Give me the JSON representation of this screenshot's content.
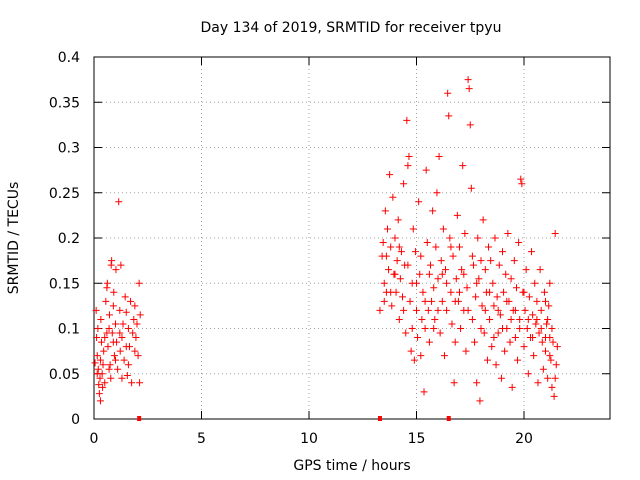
{
  "chart_data": {
    "type": "scatter",
    "title": "Day 134 of 2019, SRMTID for receiver tpyu",
    "xlabel": "GPS time / hours",
    "ylabel": "SRMTID / TECUs",
    "xlim": [
      0,
      24
    ],
    "ylim": [
      0,
      0.4
    ],
    "xticks": [
      0,
      5,
      10,
      15,
      20
    ],
    "yticks": [
      0,
      0.05,
      0.1,
      0.15,
      0.2,
      0.25,
      0.3,
      0.35,
      0.4
    ],
    "ytick_labels": [
      "0",
      "0.05",
      "0.1",
      "0.15",
      "0.2",
      "0.25",
      "0.3",
      "0.35",
      "0.4"
    ],
    "grid": true,
    "marker": "plus",
    "series": [
      {
        "color": "#ff0000",
        "points": [
          [
            0.05,
            0.062
          ],
          [
            0.1,
            0.12
          ],
          [
            0.12,
            0.09
          ],
          [
            0.15,
            0.07
          ],
          [
            0.18,
            0.1
          ],
          [
            0.2,
            0.055
          ],
          [
            0.22,
            0.038
          ],
          [
            0.25,
            0.028
          ],
          [
            0.28,
            0.045
          ],
          [
            0.3,
            0.065
          ],
          [
            0.32,
            0.11
          ],
          [
            0.35,
            0.085
          ],
          [
            0.38,
            0.05
          ],
          [
            0.4,
            0.035
          ],
          [
            0.42,
            0.06
          ],
          [
            0.45,
            0.075
          ],
          [
            0.5,
            0.09
          ],
          [
            0.55,
            0.13
          ],
          [
            0.6,
            0.145
          ],
          [
            0.62,
            0.15
          ],
          [
            0.65,
            0.08
          ],
          [
            0.7,
            0.1
          ],
          [
            0.72,
            0.115
          ],
          [
            0.75,
            0.06
          ],
          [
            0.78,
            0.045
          ],
          [
            0.8,
            0.17
          ],
          [
            0.82,
            0.175
          ],
          [
            0.85,
            0.095
          ],
          [
            0.9,
            0.125
          ],
          [
            0.92,
            0.14
          ],
          [
            0.95,
            0.07
          ],
          [
            1.0,
            0.105
          ],
          [
            1.02,
            0.165
          ],
          [
            1.05,
            0.085
          ],
          [
            1.1,
            0.055
          ],
          [
            1.15,
            0.24
          ],
          [
            1.2,
            0.12
          ],
          [
            1.22,
            0.075
          ],
          [
            1.25,
            0.17
          ],
          [
            1.3,
            0.09
          ],
          [
            1.35,
            0.105
          ],
          [
            1.4,
            0.065
          ],
          [
            1.45,
            0.135
          ],
          [
            1.5,
            0.118
          ],
          [
            1.55,
            0.048
          ],
          [
            1.6,
            0.1
          ],
          [
            1.65,
            0.08
          ],
          [
            1.7,
            0.13
          ],
          [
            1.75,
            0.04
          ],
          [
            1.8,
            0.095
          ],
          [
            1.85,
            0.11
          ],
          [
            1.9,
            0.125
          ],
          [
            1.95,
            0.09
          ],
          [
            2.0,
            0.105
          ],
          [
            2.05,
            0.07
          ],
          [
            2.1,
            0.15
          ],
          [
            2.12,
            0.04
          ],
          [
            2.15,
            0.115
          ],
          [
            0.5,
            0.04
          ],
          [
            0.3,
            0.02
          ],
          [
            0.15,
            0.05
          ],
          [
            0.7,
            0.055
          ],
          [
            1.0,
            0.065
          ],
          [
            1.3,
            0.045
          ],
          [
            1.6,
            0.06
          ],
          [
            1.9,
            0.075
          ],
          [
            0.6,
            0.095
          ],
          [
            0.9,
            0.085
          ],
          [
            1.2,
            0.095
          ],
          [
            1.5,
            0.08
          ],
          [
            13.3,
            0.12
          ],
          [
            13.4,
            0.18
          ],
          [
            13.45,
            0.195
          ],
          [
            13.5,
            0.15
          ],
          [
            13.55,
            0.23
          ],
          [
            13.6,
            0.14
          ],
          [
            13.65,
            0.21
          ],
          [
            13.7,
            0.165
          ],
          [
            13.75,
            0.27
          ],
          [
            13.8,
            0.19
          ],
          [
            13.85,
            0.125
          ],
          [
            13.9,
            0.245
          ],
          [
            13.95,
            0.16
          ],
          [
            14.0,
            0.2
          ],
          [
            14.05,
            0.14
          ],
          [
            14.1,
            0.175
          ],
          [
            14.15,
            0.22
          ],
          [
            14.2,
            0.11
          ],
          [
            14.25,
            0.155
          ],
          [
            14.3,
            0.185
          ],
          [
            14.35,
            0.135
          ],
          [
            14.4,
            0.26
          ],
          [
            14.45,
            0.17
          ],
          [
            14.5,
            0.095
          ],
          [
            14.55,
            0.33
          ],
          [
            14.6,
            0.28
          ],
          [
            14.65,
            0.29
          ],
          [
            14.7,
            0.13
          ],
          [
            14.75,
            0.075
          ],
          [
            14.8,
            0.15
          ],
          [
            14.85,
            0.21
          ],
          [
            14.9,
            0.065
          ],
          [
            14.95,
            0.185
          ],
          [
            15.0,
            0.12
          ],
          [
            15.05,
            0.09
          ],
          [
            15.1,
            0.24
          ],
          [
            15.15,
            0.16
          ],
          [
            15.2,
            0.07
          ],
          [
            15.25,
            0.11
          ],
          [
            15.3,
            0.14
          ],
          [
            15.35,
            0.03
          ],
          [
            15.4,
            0.1
          ],
          [
            15.45,
            0.275
          ],
          [
            15.5,
            0.195
          ],
          [
            15.55,
            0.12
          ],
          [
            15.6,
            0.085
          ],
          [
            15.65,
            0.17
          ],
          [
            15.7,
            0.13
          ],
          [
            15.75,
            0.23
          ],
          [
            15.8,
            0.145
          ],
          [
            15.85,
            0.11
          ],
          [
            15.9,
            0.19
          ],
          [
            15.95,
            0.25
          ],
          [
            16.0,
            0.155
          ],
          [
            16.05,
            0.29
          ],
          [
            16.1,
            0.095
          ],
          [
            16.15,
            0.175
          ],
          [
            16.2,
            0.13
          ],
          [
            16.25,
            0.21
          ],
          [
            16.3,
            0.07
          ],
          [
            16.35,
            0.165
          ],
          [
            16.4,
            0.12
          ],
          [
            16.45,
            0.36
          ],
          [
            16.5,
            0.335
          ],
          [
            16.55,
            0.2
          ],
          [
            16.6,
            0.14
          ],
          [
            16.65,
            0.105
          ],
          [
            16.7,
            0.18
          ],
          [
            16.75,
            0.04
          ],
          [
            16.8,
            0.085
          ],
          [
            16.85,
            0.155
          ],
          [
            16.9,
            0.225
          ],
          [
            16.95,
            0.13
          ],
          [
            17.0,
            0.19
          ],
          [
            17.05,
            0.1
          ],
          [
            17.1,
            0.165
          ],
          [
            17.15,
            0.28
          ],
          [
            17.2,
            0.12
          ],
          [
            17.25,
            0.205
          ],
          [
            17.3,
            0.075
          ],
          [
            17.35,
            0.145
          ],
          [
            17.4,
            0.375
          ],
          [
            17.45,
            0.365
          ],
          [
            17.5,
            0.325
          ],
          [
            17.55,
            0.255
          ],
          [
            17.6,
            0.11
          ],
          [
            17.65,
            0.17
          ],
          [
            17.7,
            0.085
          ],
          [
            17.75,
            0.135
          ],
          [
            17.8,
            0.04
          ],
          [
            17.85,
            0.2
          ],
          [
            17.9,
            0.155
          ],
          [
            17.95,
            0.02
          ],
          [
            18.0,
            0.175
          ],
          [
            18.05,
            0.125
          ],
          [
            18.1,
            0.22
          ],
          [
            18.15,
            0.095
          ],
          [
            18.2,
            0.165
          ],
          [
            18.25,
            0.14
          ],
          [
            18.3,
            0.065
          ],
          [
            18.35,
            0.19
          ],
          [
            18.4,
            0.11
          ],
          [
            18.45,
            0.175
          ],
          [
            18.5,
            0.08
          ],
          [
            18.55,
            0.15
          ],
          [
            18.6,
            0.125
          ],
          [
            18.65,
            0.2
          ],
          [
            18.7,
            0.06
          ],
          [
            18.75,
            0.135
          ],
          [
            18.8,
            0.095
          ],
          [
            18.85,
            0.17
          ],
          [
            18.9,
            0.115
          ],
          [
            18.95,
            0.045
          ],
          [
            19.0,
            0.185
          ],
          [
            19.05,
            0.14
          ],
          [
            19.1,
            0.075
          ],
          [
            19.15,
            0.16
          ],
          [
            19.2,
            0.1
          ],
          [
            19.25,
            0.205
          ],
          [
            19.3,
            0.13
          ],
          [
            19.35,
            0.085
          ],
          [
            19.4,
            0.155
          ],
          [
            19.45,
            0.035
          ],
          [
            19.5,
            0.12
          ],
          [
            19.55,
            0.175
          ],
          [
            19.6,
            0.09
          ],
          [
            19.65,
            0.145
          ],
          [
            19.7,
            0.065
          ],
          [
            19.75,
            0.195
          ],
          [
            19.8,
            0.11
          ],
          [
            19.85,
            0.265
          ],
          [
            19.9,
            0.26
          ],
          [
            19.95,
            0.14
          ],
          [
            20.0,
            0.08
          ],
          [
            20.05,
            0.12
          ],
          [
            20.1,
            0.165
          ],
          [
            20.15,
            0.1
          ],
          [
            20.2,
            0.05
          ],
          [
            20.25,
            0.135
          ],
          [
            20.3,
            0.09
          ],
          [
            20.35,
            0.185
          ],
          [
            20.4,
            0.115
          ],
          [
            20.45,
            0.07
          ],
          [
            20.5,
            0.15
          ],
          [
            20.55,
            0.105
          ],
          [
            20.6,
            0.13
          ],
          [
            20.65,
            0.04
          ],
          [
            20.7,
            0.095
          ],
          [
            20.75,
            0.165
          ],
          [
            20.8,
            0.12
          ],
          [
            20.85,
            0.085
          ],
          [
            20.9,
            0.055
          ],
          [
            20.95,
            0.14
          ],
          [
            21.0,
            0.075
          ],
          [
            21.05,
            0.105
          ],
          [
            21.1,
            0.045
          ],
          [
            21.15,
            0.125
          ],
          [
            21.2,
            0.09
          ],
          [
            21.25,
            0.065
          ],
          [
            21.3,
            0.035
          ],
          [
            21.35,
            0.085
          ],
          [
            21.4,
            0.025
          ],
          [
            21.45,
            0.205
          ],
          [
            21.5,
            0.06
          ],
          [
            21.55,
            0.08
          ],
          [
            21.45,
            0.045
          ],
          [
            21.3,
            0.1
          ],
          [
            21.2,
            0.15
          ],
          [
            21.1,
            0.11
          ],
          [
            21.0,
            0.13
          ],
          [
            13.5,
            0.13
          ],
          [
            13.6,
            0.18
          ],
          [
            13.8,
            0.14
          ],
          [
            14.0,
            0.16
          ],
          [
            14.2,
            0.19
          ],
          [
            14.4,
            0.12
          ],
          [
            14.6,
            0.17
          ],
          [
            14.8,
            0.1
          ],
          [
            15.0,
            0.15
          ],
          [
            15.2,
            0.18
          ],
          [
            15.4,
            0.13
          ],
          [
            15.6,
            0.16
          ],
          [
            15.8,
            0.1
          ],
          [
            16.0,
            0.12
          ],
          [
            16.2,
            0.16
          ],
          [
            16.4,
            0.15
          ],
          [
            16.6,
            0.19
          ],
          [
            16.8,
            0.13
          ],
          [
            17.0,
            0.14
          ],
          [
            17.2,
            0.16
          ],
          [
            17.4,
            0.12
          ],
          [
            17.6,
            0.18
          ],
          [
            17.8,
            0.15
          ],
          [
            18.0,
            0.1
          ],
          [
            18.2,
            0.12
          ],
          [
            18.4,
            0.14
          ],
          [
            18.6,
            0.09
          ],
          [
            18.8,
            0.12
          ],
          [
            19.0,
            0.1
          ],
          [
            19.2,
            0.13
          ],
          [
            19.4,
            0.11
          ],
          [
            19.6,
            0.12
          ],
          [
            19.8,
            0.1
          ],
          [
            20.0,
            0.14
          ],
          [
            20.2,
            0.11
          ],
          [
            20.4,
            0.09
          ],
          [
            20.6,
            0.11
          ],
          [
            20.8,
            0.1
          ],
          [
            21.0,
            0.09
          ],
          [
            21.2,
            0.07
          ]
        ]
      }
    ],
    "bottom_markers_x": [
      2.1,
      13.3,
      16.5
    ]
  }
}
